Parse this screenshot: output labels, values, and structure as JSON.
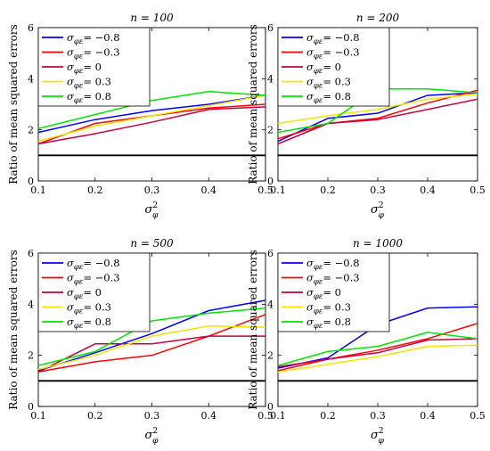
{
  "chart_data": [
    {
      "type": "line",
      "title": "n = 100",
      "xlabel": "σ²_φ",
      "ylabel": "Ratio of mean squared errors",
      "x": [
        0.1,
        0.2,
        0.3,
        0.4,
        0.5
      ],
      "xlim": [
        0.1,
        0.5
      ],
      "ylim": [
        0,
        6
      ],
      "xticks": [
        "0.1",
        "0.2",
        "0.3",
        "0.4",
        "0.5"
      ],
      "yticks": [
        "0",
        "2",
        "4",
        "6"
      ],
      "reference_line": 1,
      "legend_position": "top-left",
      "series": [
        {
          "name": "σφε = −0.8",
          "color": "#0000ff",
          "values": [
            1.9,
            2.4,
            2.75,
            3.0,
            3.35
          ]
        },
        {
          "name": "σφε = −0.3",
          "color": "#ff0000",
          "values": [
            1.45,
            2.25,
            2.55,
            2.85,
            3.0
          ]
        },
        {
          "name": "σφε = 0",
          "color": "#c8003c",
          "values": [
            1.45,
            1.85,
            2.3,
            2.8,
            2.9
          ]
        },
        {
          "name": "σφε = 0.3",
          "color": "#f2e600",
          "values": [
            1.55,
            2.15,
            2.55,
            2.95,
            3.35
          ]
        },
        {
          "name": "σφε = 0.8",
          "color": "#00e600",
          "values": [
            2.05,
            2.6,
            3.15,
            3.5,
            3.35
          ]
        }
      ]
    },
    {
      "type": "line",
      "title": "n = 200",
      "xlabel": "σ²_φ",
      "ylabel": "Ratio of mean squared errors",
      "x": [
        0.1,
        0.2,
        0.3,
        0.4,
        0.5
      ],
      "xlim": [
        0.1,
        0.5
      ],
      "ylim": [
        0,
        6
      ],
      "xticks": [
        "0.1",
        "0.2",
        "0.3",
        "0.4",
        "0.5"
      ],
      "yticks": [
        "0",
        "2",
        "4",
        "6"
      ],
      "reference_line": 1,
      "legend_position": "top-left",
      "series": [
        {
          "name": "σφε = −0.8",
          "color": "#0000ff",
          "values": [
            1.55,
            2.45,
            2.65,
            3.35,
            3.45
          ]
        },
        {
          "name": "σφε = −0.3",
          "color": "#ff0000",
          "values": [
            1.65,
            2.25,
            2.45,
            3.05,
            3.55
          ]
        },
        {
          "name": "σφε = 0",
          "color": "#c8003c",
          "values": [
            1.45,
            2.25,
            2.4,
            2.8,
            3.2
          ]
        },
        {
          "name": "σφε = 0.3",
          "color": "#f2e600",
          "values": [
            2.25,
            2.55,
            2.8,
            3.2,
            3.4
          ]
        },
        {
          "name": "σφε = 0.8",
          "color": "#00e600",
          "values": [
            1.9,
            2.25,
            3.6,
            3.6,
            3.45
          ]
        }
      ]
    },
    {
      "type": "line",
      "title": "n = 500",
      "xlabel": "σ²_φ",
      "ylabel": "Ratio of mean squared errors",
      "x": [
        0.1,
        0.2,
        0.3,
        0.4,
        0.5
      ],
      "xlim": [
        0.1,
        0.5
      ],
      "ylim": [
        0,
        6
      ],
      "xticks": [
        "0.1",
        "0.2",
        "0.3",
        "0.4",
        "0.5"
      ],
      "yticks": [
        "0",
        "2",
        "4",
        "6"
      ],
      "reference_line": 1,
      "legend_position": "top-left",
      "series": [
        {
          "name": "σφε = −0.8",
          "color": "#0000ff",
          "values": [
            1.4,
            2.1,
            2.85,
            3.75,
            4.15
          ]
        },
        {
          "name": "σφε = −0.3",
          "color": "#ff0000",
          "values": [
            1.35,
            1.75,
            2.0,
            2.75,
            3.6
          ]
        },
        {
          "name": "σφε = 0",
          "color": "#c8003c",
          "values": [
            1.35,
            2.45,
            2.45,
            2.75,
            2.75
          ]
        },
        {
          "name": "σφε = 0.3",
          "color": "#f2e600",
          "values": [
            1.45,
            2.0,
            2.75,
            3.15,
            3.1
          ]
        },
        {
          "name": "σφε = 0.8",
          "color": "#00e600",
          "values": [
            1.6,
            2.15,
            3.35,
            3.65,
            3.85
          ]
        }
      ]
    },
    {
      "type": "line",
      "title": "n = 1000",
      "xlabel": "σ²_φ",
      "ylabel": "Ratio of mean squared errors",
      "x": [
        0.1,
        0.2,
        0.3,
        0.4,
        0.5
      ],
      "xlim": [
        0.1,
        0.5
      ],
      "ylim": [
        0,
        6
      ],
      "xticks": [
        "0.1",
        "0.2",
        "0.3",
        "0.4",
        "0.5"
      ],
      "yticks": [
        "0",
        "2",
        "4",
        "6"
      ],
      "reference_line": 1,
      "legend_position": "top-left",
      "series": [
        {
          "name": "σφε = −0.8",
          "color": "#0000ff",
          "values": [
            1.5,
            1.9,
            3.2,
            3.85,
            3.9
          ]
        },
        {
          "name": "σφε = −0.3",
          "color": "#ff0000",
          "values": [
            1.4,
            1.85,
            2.2,
            2.65,
            3.25
          ]
        },
        {
          "name": "σφε = 0",
          "color": "#c8003c",
          "values": [
            1.55,
            1.85,
            2.1,
            2.6,
            2.65
          ]
        },
        {
          "name": "σφε = 0.3",
          "color": "#f2e600",
          "values": [
            1.35,
            1.65,
            1.95,
            2.35,
            2.4
          ]
        },
        {
          "name": "σφε = 0.8",
          "color": "#00e600",
          "values": [
            1.6,
            2.15,
            2.35,
            2.9,
            2.65
          ]
        }
      ]
    }
  ]
}
